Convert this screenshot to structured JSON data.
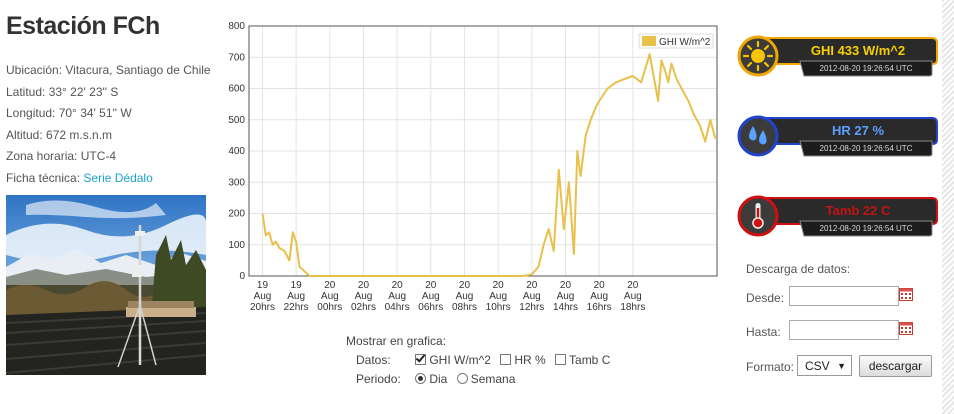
{
  "station": {
    "title": "Estación FCh",
    "location": "Ubicación: Vitacura, Santiago de Chile",
    "latitude": "Latitud: 33° 22' 23'' S",
    "longitude": "Longitud: 70° 34' 51'' W",
    "altitude": "Altitud: 672 m.s.n.m",
    "timezone": "Zona horaria: UTC-4",
    "datasheet_label": "Ficha técnica:",
    "datasheet_link": "Serie Dédalo"
  },
  "chart_data": {
    "type": "line",
    "series": [
      {
        "name": "GHI W/m^2",
        "color": "#e8c04a",
        "x": [
          20.0,
          20.2,
          20.4,
          20.6,
          20.8,
          21.0,
          21.3,
          21.6,
          21.8,
          22.0,
          22.2,
          22.4,
          22.8,
          23.2,
          24,
          26,
          28,
          30,
          32,
          34,
          35.5,
          36.0,
          36.4,
          36.7,
          37.0,
          37.3,
          37.6,
          37.9,
          38.2,
          38.5,
          38.7,
          38.9,
          39.2,
          39.5,
          39.8,
          40.0,
          40.5,
          41.0,
          41.5,
          42.0,
          42.5,
          43.0,
          43.5,
          43.7,
          43.9,
          44.1,
          44.3,
          44.6,
          45.0,
          45.3,
          45.6,
          46.0,
          46.3,
          46.6,
          46.9
        ],
        "y": [
          200,
          130,
          140,
          100,
          110,
          90,
          80,
          50,
          140,
          110,
          30,
          20,
          0,
          0,
          0,
          0,
          0,
          0,
          0,
          0,
          0,
          5,
          30,
          100,
          150,
          80,
          340,
          150,
          300,
          70,
          400,
          320,
          450,
          500,
          540,
          560,
          600,
          620,
          630,
          640,
          620,
          710,
          560,
          690,
          660,
          620,
          680,
          630,
          590,
          560,
          520,
          480,
          430,
          500,
          440
        ]
      }
    ],
    "x_ticks": [
      {
        "x": 20,
        "day": "19",
        "month": "Aug",
        "hour": "20hrs"
      },
      {
        "x": 22,
        "day": "19",
        "month": "Aug",
        "hour": "22hrs"
      },
      {
        "x": 24,
        "day": "20",
        "month": "Aug",
        "hour": "00hrs"
      },
      {
        "x": 26,
        "day": "20",
        "month": "Aug",
        "hour": "02hrs"
      },
      {
        "x": 28,
        "day": "20",
        "month": "Aug",
        "hour": "04hrs"
      },
      {
        "x": 30,
        "day": "20",
        "month": "Aug",
        "hour": "06hrs"
      },
      {
        "x": 32,
        "day": "20",
        "month": "Aug",
        "hour": "08hrs"
      },
      {
        "x": 34,
        "day": "20",
        "month": "Aug",
        "hour": "10hrs"
      },
      {
        "x": 36,
        "day": "20",
        "month": "Aug",
        "hour": "12hrs"
      },
      {
        "x": 38,
        "day": "20",
        "month": "Aug",
        "hour": "14hrs"
      },
      {
        "x": 40,
        "day": "20",
        "month": "Aug",
        "hour": "16hrs"
      },
      {
        "x": 42,
        "day": "20",
        "month": "Aug",
        "hour": "18hrs"
      }
    ],
    "y_ticks": [
      0,
      100,
      200,
      300,
      400,
      500,
      600,
      700,
      800
    ],
    "xlim": [
      19.2,
      47.0
    ],
    "ylim": [
      0,
      800
    ],
    "grid": true,
    "legend": "top-right"
  },
  "controls": {
    "show_label": "Mostrar en grafica:",
    "data_label": "Datos:",
    "data_options": [
      {
        "label": "GHI W/m^2",
        "checked": true
      },
      {
        "label": "HR %",
        "checked": false
      },
      {
        "label": "Tamb C",
        "checked": false
      }
    ],
    "period_label": "Periodo:",
    "period_options": [
      {
        "label": "Dia",
        "checked": true
      },
      {
        "label": "Semana",
        "checked": false
      }
    ]
  },
  "gauges": [
    {
      "name": "ghi",
      "icon": "sun-icon",
      "value_text": "GHI  433  W/m^2",
      "timestamp": "2012-08-20 19:26:54 UTC",
      "accent": "#f0a500",
      "text_color": "#f7d000"
    },
    {
      "name": "hr",
      "icon": "water-drops-icon",
      "value_text": "HR  27  %",
      "timestamp": "2012-08-20 19:26:54 UTC",
      "accent": "#2244cc",
      "text_color": "#5aa0ff"
    },
    {
      "name": "tamb",
      "icon": "thermometer-icon",
      "value_text": "Tamb  22  C",
      "timestamp": "2012-08-20 19:26:54 UTC",
      "accent": "#d01010",
      "text_color": "#c01515"
    }
  ],
  "download": {
    "title": "Descarga de datos:",
    "from_label": "Desde:",
    "to_label": "Hasta:",
    "format_label": "Formato:",
    "format_value": "CSV",
    "button_label": "descargar"
  }
}
